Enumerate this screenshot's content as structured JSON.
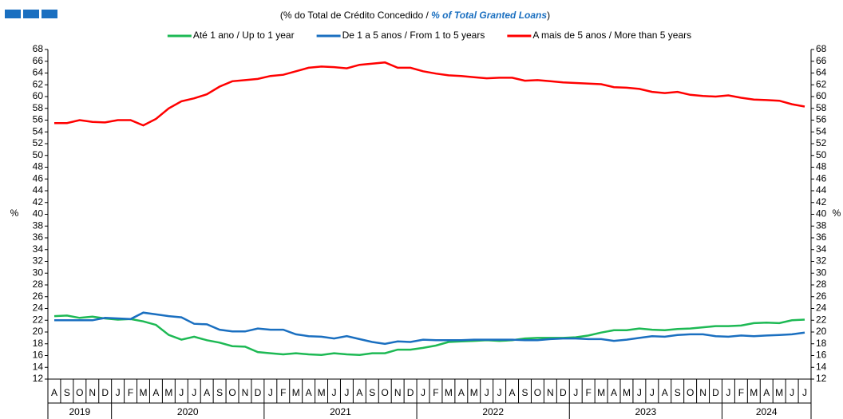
{
  "chart_data": {
    "type": "line",
    "title_parts": [
      "(% do Total de Crédito Concedido / ",
      "% of Total Granted Loans",
      ")"
    ],
    "ylabel": "%",
    "y2label": "%",
    "categories": [
      "A",
      "S",
      "O",
      "N",
      "D",
      "J",
      "F",
      "M",
      "A",
      "M",
      "J",
      "J",
      "A",
      "S",
      "O",
      "N",
      "D",
      "J",
      "F",
      "M",
      "A",
      "M",
      "J",
      "J",
      "A",
      "S",
      "O",
      "N",
      "D",
      "J",
      "F",
      "M",
      "A",
      "M",
      "J",
      "J",
      "A",
      "S",
      "O",
      "N",
      "D",
      "J",
      "F",
      "M",
      "A",
      "M",
      "J",
      "J",
      "A",
      "S",
      "O",
      "N",
      "D",
      "J",
      "F",
      "M",
      "A",
      "M",
      "J",
      "J"
    ],
    "years": [
      "2019",
      "2020",
      "2021",
      "2022",
      "2023",
      "2024"
    ],
    "ylim": [
      12,
      68
    ],
    "yticks": [
      12,
      14,
      16,
      18,
      20,
      22,
      24,
      26,
      28,
      30,
      32,
      34,
      36,
      38,
      40,
      42,
      44,
      46,
      48,
      50,
      52,
      54,
      56,
      58,
      60,
      62,
      64,
      66,
      68
    ],
    "y2lim": [
      12,
      68
    ],
    "y2ticks": [
      12,
      14,
      16,
      18,
      20,
      22,
      24,
      26,
      28,
      30,
      32,
      34,
      36,
      38,
      40,
      42,
      44,
      46,
      48,
      50,
      52,
      54,
      56,
      58,
      60,
      62,
      64,
      66,
      68
    ],
    "series": [
      {
        "name": "Até 1 ano / Up to 1 year",
        "color": "#1db954",
        "values": [
          22.7,
          22.8,
          22.4,
          22.6,
          22.3,
          22.1,
          22.2,
          21.8,
          21.2,
          19.5,
          18.7,
          19.2,
          18.6,
          18.2,
          17.6,
          17.5,
          16.6,
          16.4,
          16.2,
          16.4,
          16.2,
          16.1,
          16.4,
          16.2,
          16.1,
          16.4,
          16.4,
          17.0,
          17.0,
          17.3,
          17.7,
          18.3,
          18.4,
          18.5,
          18.6,
          18.5,
          18.6,
          18.9,
          19.0,
          19.0,
          19.0,
          19.1,
          19.4,
          19.9,
          20.3,
          20.3,
          20.6,
          20.4,
          20.3,
          20.5,
          20.6,
          20.8,
          21.0,
          21.0,
          21.1,
          21.5,
          21.6,
          21.5,
          22.0,
          22.1
        ]
      },
      {
        "name": "De 1 a 5 anos / From 1 to 5 years",
        "color": "#1a6fc0",
        "values": [
          22.0,
          22.0,
          22.0,
          22.0,
          22.4,
          22.3,
          22.2,
          23.3,
          23.0,
          22.7,
          22.5,
          21.4,
          21.3,
          20.4,
          20.1,
          20.1,
          20.6,
          20.4,
          20.4,
          19.6,
          19.3,
          19.2,
          18.9,
          19.3,
          18.8,
          18.3,
          18.0,
          18.4,
          18.3,
          18.7,
          18.6,
          18.6,
          18.6,
          18.7,
          18.7,
          18.7,
          18.7,
          18.6,
          18.6,
          18.8,
          18.9,
          18.9,
          18.8,
          18.8,
          18.5,
          18.7,
          19.0,
          19.3,
          19.2,
          19.5,
          19.6,
          19.6,
          19.3,
          19.2,
          19.4,
          19.3,
          19.4,
          19.5,
          19.6,
          19.9
        ]
      },
      {
        "name": "A mais de 5 anos / More than 5 years",
        "color": "#ff0000",
        "values": [
          55.5,
          55.5,
          56.0,
          55.7,
          55.6,
          56.0,
          56.0,
          55.1,
          56.2,
          58.0,
          59.2,
          59.7,
          60.4,
          61.7,
          62.6,
          62.8,
          63.0,
          63.5,
          63.7,
          64.3,
          64.9,
          65.1,
          65.0,
          64.8,
          65.4,
          65.6,
          65.8,
          64.9,
          64.9,
          64.3,
          63.9,
          63.6,
          63.5,
          63.3,
          63.1,
          63.2,
          63.2,
          62.7,
          62.8,
          62.6,
          62.4,
          62.3,
          62.2,
          62.1,
          61.6,
          61.5,
          61.3,
          60.8,
          60.6,
          60.8,
          60.3,
          60.1,
          60.0,
          60.2,
          59.8,
          59.5,
          59.4,
          59.3,
          58.7,
          58.3
        ]
      }
    ]
  }
}
